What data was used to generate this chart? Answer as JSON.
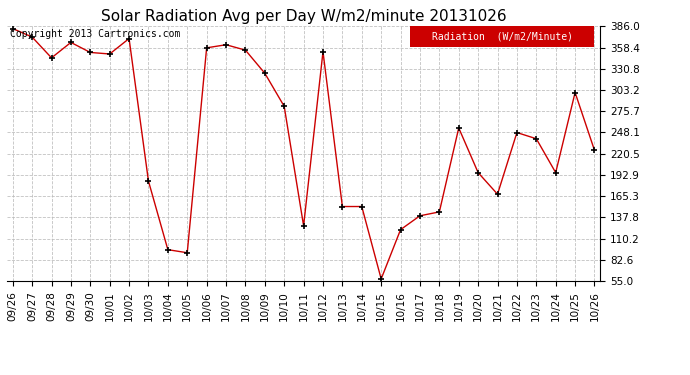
{
  "title": "Solar Radiation Avg per Day W/m2/minute 20131026",
  "copyright": "Copyright 2013 Cartronics.com",
  "legend_label": "Radiation  (W/m2/Minute)",
  "dates": [
    "09/26",
    "09/27",
    "09/28",
    "09/29",
    "09/30",
    "10/01",
    "10/02",
    "10/03",
    "10/04",
    "10/05",
    "10/06",
    "10/07",
    "10/08",
    "10/09",
    "10/10",
    "10/11",
    "10/12",
    "10/13",
    "10/14",
    "10/15",
    "10/16",
    "10/17",
    "10/18",
    "10/19",
    "10/20",
    "10/21",
    "10/22",
    "10/23",
    "10/24",
    "10/25",
    "10/26"
  ],
  "values": [
    383.0,
    372.0,
    345.0,
    365.0,
    352.0,
    350.0,
    370.0,
    185.0,
    96.0,
    92.0,
    358.0,
    362.0,
    355.0,
    325.0,
    282.0,
    127.0,
    353.0,
    152.0,
    152.0,
    58.0,
    122.0,
    140.0,
    145.0,
    254.0,
    196.0,
    168.0,
    248.0,
    240.0,
    196.0,
    300.0,
    225.0
  ],
  "line_color": "#cc0000",
  "marker_color": "#000000",
  "background_color": "#ffffff",
  "plot_bg_color": "#ffffff",
  "grid_color": "#bbbbbb",
  "legend_bg": "#cc0000",
  "legend_text_color": "#ffffff",
  "yticks": [
    55.0,
    82.6,
    110.2,
    137.8,
    165.3,
    192.9,
    220.5,
    248.1,
    275.7,
    303.2,
    330.8,
    358.4,
    386.0
  ],
  "ymin": 55.0,
  "ymax": 386.0,
  "title_fontsize": 11,
  "copyright_fontsize": 7,
  "tick_fontsize": 7.5,
  "legend_fontsize": 7
}
